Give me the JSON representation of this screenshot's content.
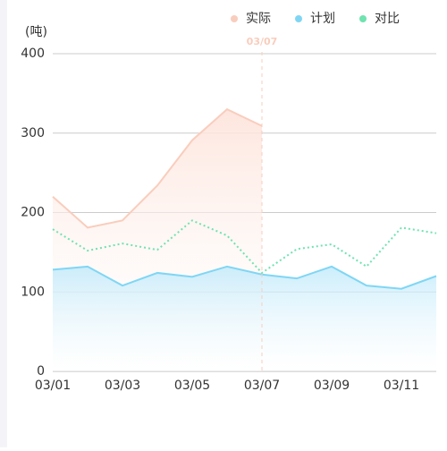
{
  "chart_data": {
    "type": "line",
    "y_axis_label": "(吨)",
    "categories": [
      "03/01",
      null,
      "03/03",
      null,
      "03/05",
      null,
      "03/07",
      null,
      "03/09",
      null,
      "03/11",
      null
    ],
    "pointer_label": "03/07",
    "pointer_index": 6,
    "series": [
      {
        "name": "实际",
        "color": "#f9cdbd",
        "area": true,
        "dashed": false,
        "values": [
          220,
          181,
          190,
          234,
          291,
          330,
          309,
          null,
          null,
          null,
          null,
          null
        ]
      },
      {
        "name": "计划",
        "color": "#7fd6f4",
        "area": true,
        "dashed": false,
        "values": [
          128,
          132,
          108,
          124,
          119,
          132,
          122,
          117,
          132,
          108,
          104,
          120
        ]
      },
      {
        "name": "对比",
        "color": "#6fe3b0",
        "area": false,
        "dashed": true,
        "values": [
          179,
          152,
          161,
          153,
          190,
          171,
          124,
          154,
          160,
          132,
          181,
          174
        ]
      }
    ],
    "ylim": [
      0,
      400
    ],
    "yticks": [
      0,
      100,
      200,
      300,
      400
    ],
    "grid": true,
    "legend": "top-right"
  }
}
